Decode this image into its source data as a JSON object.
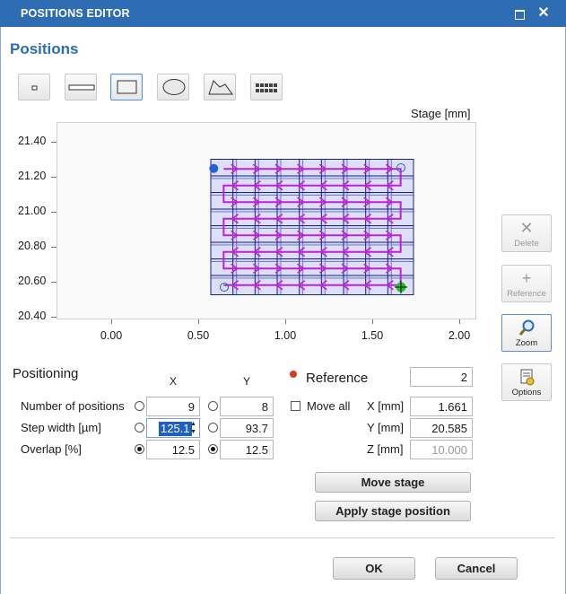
{
  "window": {
    "title": "POSITIONS EDITOR",
    "maximize_icon": "maximize-icon",
    "close_icon": "close-icon",
    "close_glyph": "✕"
  },
  "section_title": "Positions",
  "toolbar": {
    "tools": [
      {
        "name": "single-point",
        "icon": "point-icon"
      },
      {
        "name": "line",
        "icon": "line-icon"
      },
      {
        "name": "rectangle",
        "icon": "rectangle-icon",
        "selected": true
      },
      {
        "name": "ellipse",
        "icon": "ellipse-icon"
      },
      {
        "name": "polygon",
        "icon": "polygon-icon"
      },
      {
        "name": "grid",
        "icon": "grid-icon"
      }
    ]
  },
  "plot": {
    "title": "Stage [mm]",
    "y_ticks": [
      "21.40",
      "21.20",
      "21.00",
      "20.80",
      "20.60",
      "20.40"
    ],
    "x_ticks": [
      "0.00",
      "0.50",
      "1.00",
      "1.50",
      "2.00"
    ],
    "colors": {
      "tile_fill": "#c4c8f2",
      "tile_border": "#1a237e",
      "path": "#c020d8",
      "start_dot": "#2163d6",
      "end_marker": "#22c022",
      "background": "#fafafa"
    }
  },
  "side_buttons": {
    "delete": {
      "label": "Delete",
      "icon": "delete-icon",
      "glyph": "✕",
      "enabled": false
    },
    "reference": {
      "label": "Reference",
      "icon": "plus-icon",
      "glyph": "+",
      "enabled": false
    },
    "zoom": {
      "label": "Zoom",
      "icon": "magnifier-icon",
      "active": true
    },
    "options": {
      "label": "Options",
      "icon": "options-icon",
      "enabled": true
    }
  },
  "positioning": {
    "title": "Positioning",
    "col_x": "X",
    "col_y": "Y",
    "rows": [
      {
        "label": "Number of positions",
        "x": "9",
        "y": "8",
        "x_radio": false,
        "y_radio": false
      },
      {
        "label": "Step width [µm]",
        "x": "125.1",
        "y": "93.7",
        "x_radio": false,
        "y_radio": false
      },
      {
        "label": "Overlap [%]",
        "x": "12.5",
        "y": "12.5",
        "x_radio": true,
        "y_radio": true
      }
    ]
  },
  "reference": {
    "title": "Reference",
    "value": "2",
    "move_all_label": "Move all",
    "move_all_checked": false,
    "x_label": "X [mm]",
    "x_value": "1.661",
    "y_label": "Y [mm]",
    "y_value": "20.585",
    "z_label": "Z [mm]",
    "z_value": "10.000"
  },
  "buttons": {
    "move_stage": "Move stage",
    "apply_stage": "Apply stage position",
    "ok": "OK",
    "cancel": "Cancel"
  }
}
